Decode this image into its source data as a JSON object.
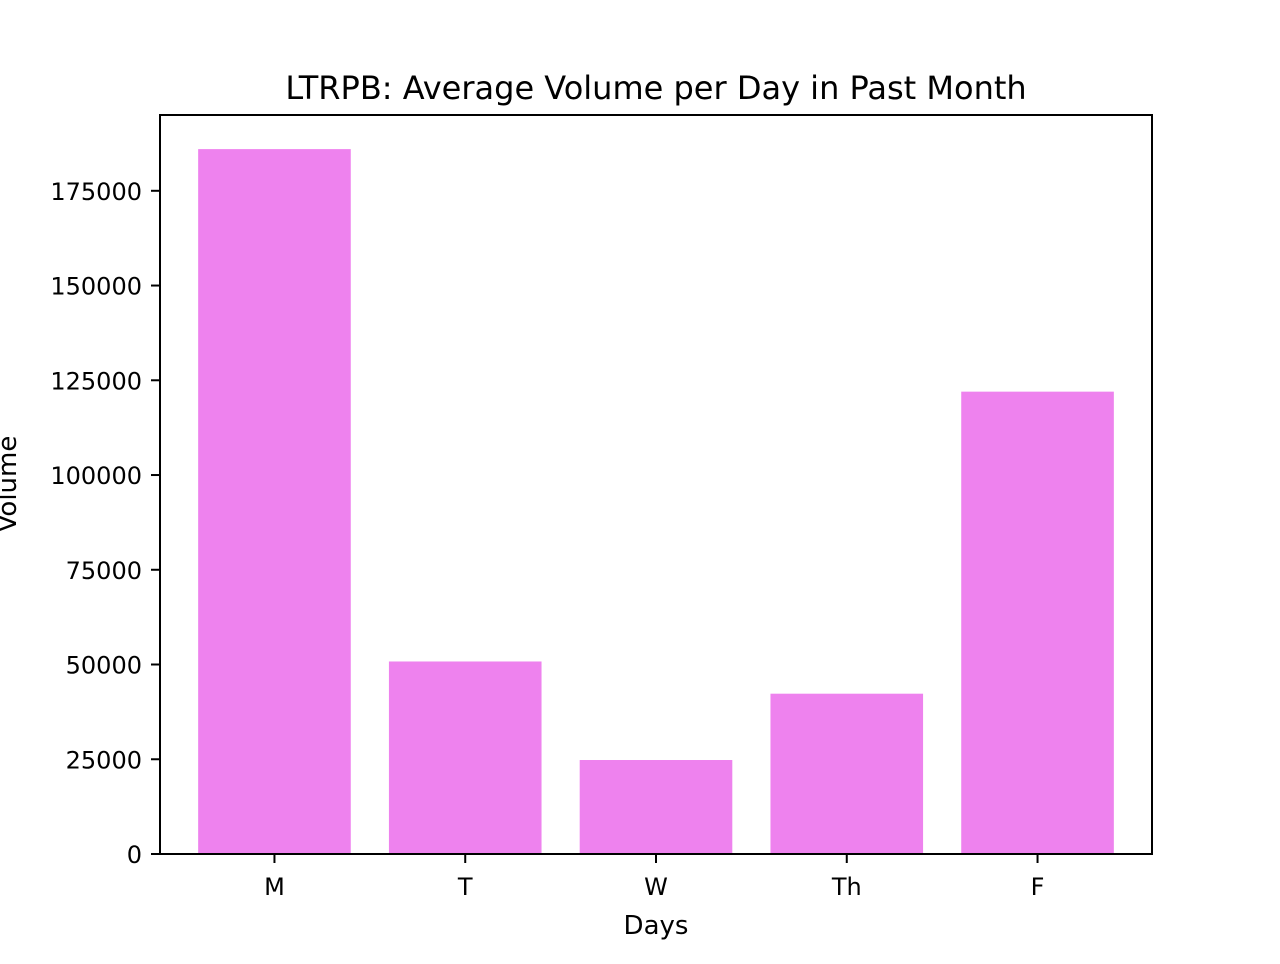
{
  "chart_data": {
    "type": "bar",
    "title": "LTRPB: Average Volume per Day in Past Month",
    "xlabel": "Days",
    "ylabel": "Volume",
    "categories": [
      "M",
      "T",
      "W",
      "Th",
      "F"
    ],
    "values": [
      186000,
      50800,
      24800,
      42300,
      122000
    ],
    "ylim": [
      0,
      195000
    ],
    "yticks": [
      0,
      25000,
      50000,
      75000,
      100000,
      125000,
      150000,
      175000
    ],
    "ytick_labels": [
      "0",
      "25000",
      "50000",
      "75000",
      "100000",
      "125000",
      "150000",
      "175000"
    ],
    "bar_color": "#ee82ee",
    "grid": false,
    "legend": "none"
  }
}
